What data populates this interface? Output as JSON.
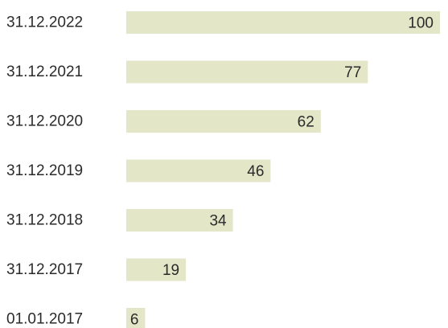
{
  "chart_data": {
    "type": "bar",
    "orientation": "horizontal",
    "title": "",
    "xlabel": "",
    "ylabel": "",
    "categories": [
      "31.12.2022",
      "31.12.2021",
      "31.12.2020",
      "31.12.2019",
      "31.12.2018",
      "31.12.2017",
      "01.01.2017"
    ],
    "values": [
      100,
      77,
      62,
      46,
      34,
      19,
      6
    ],
    "value_labels": [
      "100",
      "77",
      "62",
      "46",
      "34",
      "19",
      "6"
    ],
    "xlim": [
      0,
      100
    ],
    "grid": false,
    "legend": "none",
    "bar_color": "#e3e6c7",
    "text_color": "#2b2b2b"
  }
}
